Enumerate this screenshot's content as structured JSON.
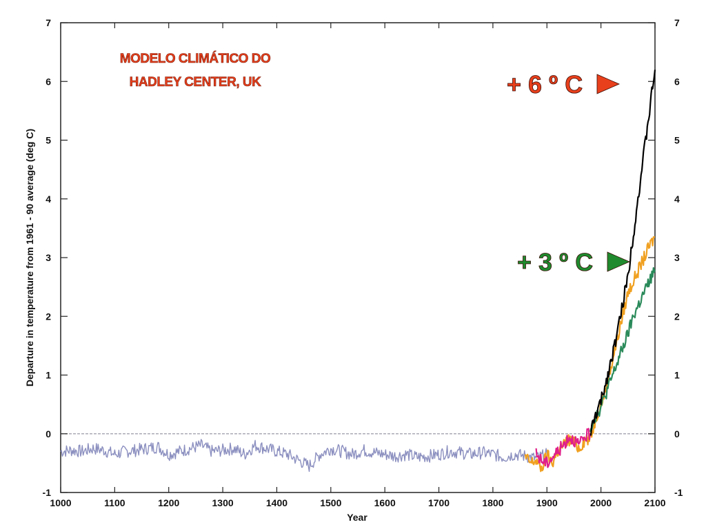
{
  "chart_data": {
    "type": "line",
    "title_lines": [
      "MODELO CLIMÁTICO DO",
      "HADLEY CENTER, UK"
    ],
    "xlabel": "Year",
    "ylabel": "Departure in temperature from 1961 - 90 average (deg C)",
    "xlim": [
      1000,
      2100
    ],
    "ylim": [
      -1,
      7
    ],
    "x_ticks": [
      "1000",
      "1100",
      "1200",
      "1300",
      "1400",
      "1500",
      "1600",
      "1700",
      "1800",
      "1900",
      "2000",
      "2100"
    ],
    "y_ticks": [
      "-1",
      "0",
      "1",
      "2",
      "3",
      "4",
      "5",
      "6",
      "7"
    ],
    "grid": false,
    "legend": "none",
    "annotations": [
      {
        "text": "+ 6 º C",
        "marker": "triangle-right",
        "color": "#e8401c",
        "y": 6.05
      },
      {
        "text": "+ 3 º C",
        "marker": "triangle-right",
        "color": "#1f8a2e",
        "y": 2.95
      }
    ],
    "series": [
      {
        "color": "#8b8fbf",
        "x": [
          1000,
          1020,
          1040,
          1060,
          1080,
          1100,
          1120,
          1140,
          1160,
          1180,
          1200,
          1220,
          1240,
          1260,
          1280,
          1300,
          1320,
          1340,
          1360,
          1380,
          1400,
          1420,
          1440,
          1460,
          1480,
          1500,
          1520,
          1540,
          1560,
          1580,
          1600,
          1620,
          1640,
          1660,
          1680,
          1700,
          1720,
          1740,
          1760,
          1780,
          1800,
          1820,
          1840,
          1860,
          1880,
          1900
        ],
        "y": [
          -0.3,
          -0.28,
          -0.3,
          -0.25,
          -0.28,
          -0.35,
          -0.3,
          -0.28,
          -0.25,
          -0.22,
          -0.35,
          -0.3,
          -0.25,
          -0.2,
          -0.3,
          -0.28,
          -0.25,
          -0.35,
          -0.2,
          -0.25,
          -0.3,
          -0.35,
          -0.45,
          -0.55,
          -0.35,
          -0.25,
          -0.3,
          -0.35,
          -0.28,
          -0.32,
          -0.35,
          -0.38,
          -0.35,
          -0.4,
          -0.38,
          -0.35,
          -0.3,
          -0.32,
          -0.35,
          -0.32,
          -0.35,
          -0.4,
          -0.35,
          -0.38,
          -0.42,
          -0.35
        ]
      },
      {
        "color": "#f0a020",
        "x": [
          1860,
          1870,
          1880,
          1890,
          1900,
          1910,
          1920,
          1930,
          1940,
          1950,
          1960,
          1970,
          1980,
          1990,
          2000,
          2010,
          2020,
          2030,
          2040,
          2050,
          2060,
          2070,
          2080,
          2090,
          2100
        ],
        "y": [
          -0.4,
          -0.5,
          -0.45,
          -0.6,
          -0.35,
          -0.5,
          -0.3,
          -0.2,
          -0.1,
          -0.15,
          -0.25,
          -0.1,
          -0.1,
          0.25,
          0.5,
          0.8,
          1.2,
          1.6,
          2.0,
          2.4,
          2.6,
          2.8,
          3.0,
          3.2,
          3.35
        ]
      },
      {
        "color": "#e0208a",
        "x": [
          1880,
          1890,
          1900,
          1910,
          1920,
          1930,
          1940,
          1950,
          1960,
          1970,
          1980
        ],
        "y": [
          -0.35,
          -0.45,
          -0.5,
          -0.4,
          -0.3,
          -0.2,
          -0.05,
          -0.1,
          -0.2,
          -0.05,
          0.0
        ]
      },
      {
        "color": "#2a8a5a",
        "x": [
          1980,
          1990,
          2000,
          2010,
          2020,
          2030,
          2040,
          2050,
          2060,
          2070,
          2080,
          2090,
          2100
        ],
        "y": [
          0.1,
          0.3,
          0.45,
          0.7,
          0.95,
          1.2,
          1.45,
          1.7,
          2.0,
          2.2,
          2.4,
          2.6,
          2.8
        ]
      },
      {
        "color": "#000000",
        "x": [
          1980,
          1990,
          2000,
          2010,
          2020,
          2030,
          2040,
          2050,
          2060,
          2070,
          2080,
          2090,
          2100
        ],
        "y": [
          0.0,
          0.3,
          0.55,
          0.9,
          1.3,
          1.7,
          2.2,
          2.7,
          3.4,
          4.1,
          4.8,
          5.5,
          6.2
        ]
      }
    ]
  }
}
